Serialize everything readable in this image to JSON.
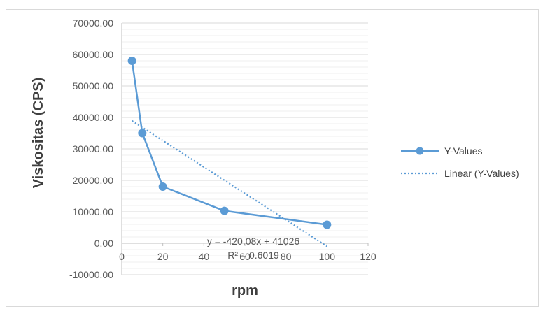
{
  "chart_data": {
    "type": "scatter",
    "xlabel": "rpm",
    "ylabel": "Viskositas (CPS)",
    "xlim": [
      0,
      120
    ],
    "ylim": [
      -10000,
      70000
    ],
    "x_ticks": [
      0,
      20,
      40,
      60,
      80,
      100,
      120
    ],
    "y_ticks": [
      -10000,
      0,
      10000,
      20000,
      30000,
      40000,
      50000,
      60000,
      70000
    ],
    "y_tick_labels": [
      "-10000.00",
      "0.00",
      "10000.00",
      "20000.00",
      "30000.00",
      "40000.00",
      "50000.00",
      "60000.00",
      "70000.00"
    ],
    "grid": true,
    "legend_position": "right",
    "series": [
      {
        "name": "Y-Values",
        "style": "line-with-markers",
        "color": "#5b9bd5",
        "x": [
          5,
          10,
          20,
          50,
          100
        ],
        "y": [
          58000,
          35000,
          18000,
          10300,
          5900
        ]
      },
      {
        "name": "Linear (Y-Values)",
        "style": "dotted-trendline",
        "color": "#5b9bd5",
        "slope": -420.08,
        "intercept": 41026,
        "x_range": [
          5,
          100
        ]
      }
    ],
    "annotations": {
      "equation": "y = -420.08x + 41026",
      "r_squared": "R² = 0.6019"
    }
  }
}
